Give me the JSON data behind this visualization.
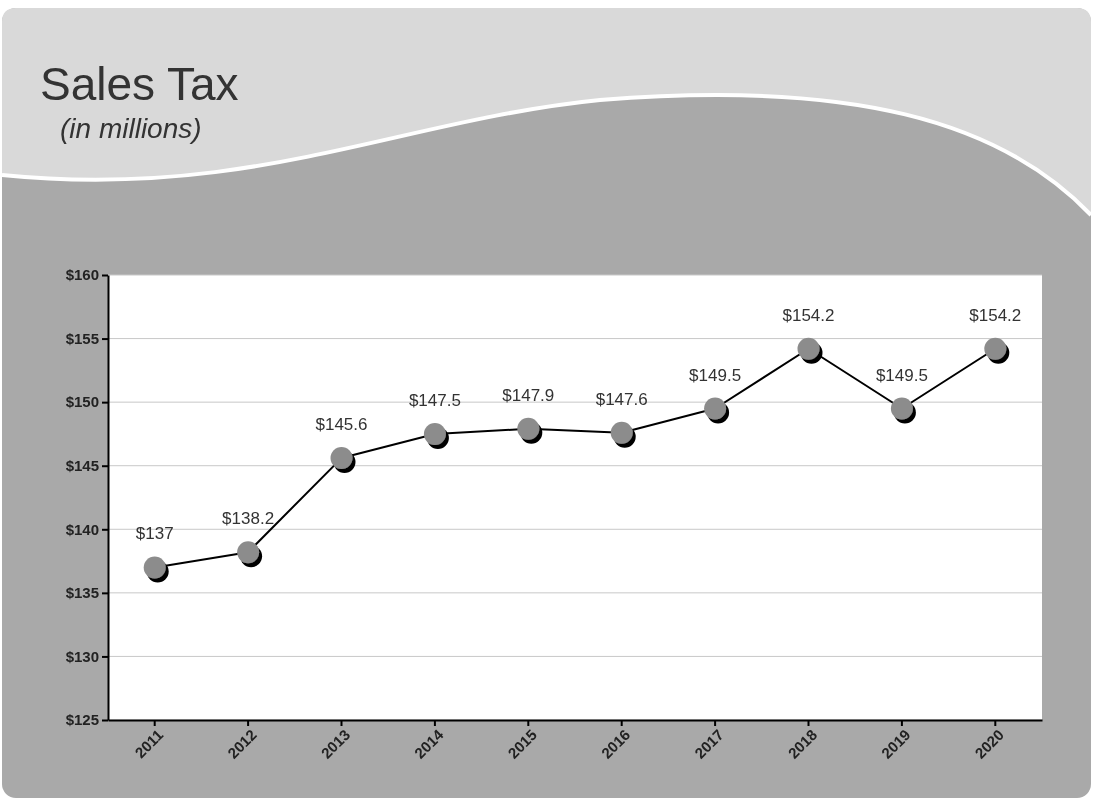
{
  "chart_data": {
    "type": "line",
    "title": "Sales Tax",
    "subtitle": "(in millions)",
    "categories": [
      "2011",
      "2012",
      "2013",
      "2014",
      "2015",
      "2016",
      "2017",
      "2018",
      "2019",
      "2020"
    ],
    "series": [
      {
        "color": "#000000",
        "values": [
          137,
          138.2,
          145.6,
          147.5,
          147.9,
          147.6,
          149.5,
          154.2,
          149.5,
          154.2
        ],
        "value_labels": [
          "$137",
          "$138.2",
          "$145.6",
          "$147.5",
          "$147.9",
          "$147.6",
          "$149.5",
          "$154.2",
          "$149.5",
          "$154.2"
        ]
      }
    ],
    "ylim": [
      125,
      160
    ],
    "yticks": [
      {
        "value": 125,
        "label": "$125"
      },
      {
        "value": 130,
        "label": "$130"
      },
      {
        "value": 135,
        "label": "$135"
      },
      {
        "value": 140,
        "label": "$140"
      },
      {
        "value": 145,
        "label": "$145"
      },
      {
        "value": 150,
        "label": "$150"
      },
      {
        "value": 155,
        "label": "$155"
      },
      {
        "value": 160,
        "label": "$160"
      }
    ],
    "grid": "y",
    "marker": "circle",
    "line_style": "solid"
  }
}
